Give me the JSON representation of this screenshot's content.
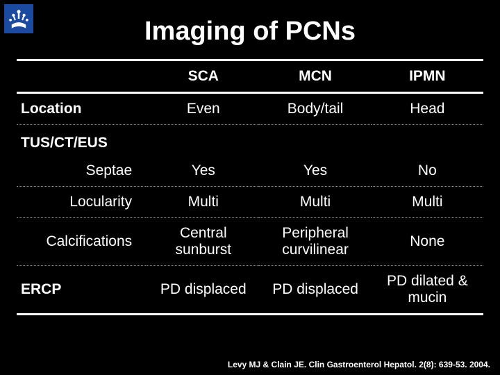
{
  "title": "Imaging of PCNs",
  "columns": [
    "SCA",
    "MCN",
    "IPMN"
  ],
  "rows": [
    {
      "label": "Location",
      "cells": [
        "Even",
        "Body/tail",
        "Head"
      ],
      "type": "row",
      "indent": false,
      "dottedAfter": true
    },
    {
      "label": "TUS/CT/EUS",
      "type": "section"
    },
    {
      "label": "Septae",
      "cells": [
        "Yes",
        "Yes",
        "No"
      ],
      "type": "row",
      "indent": true,
      "dottedAfter": true
    },
    {
      "label": "Locularity",
      "cells": [
        "Multi",
        "Multi",
        "Multi"
      ],
      "type": "row",
      "indent": true,
      "dottedAfter": true
    },
    {
      "label": "Calcifications",
      "cells": [
        "Central sunburst",
        "Peripheral curvilinear",
        "None"
      ],
      "type": "row",
      "indent": true,
      "dottedAfter": true
    },
    {
      "label": "ERCP",
      "cells": [
        "PD displaced",
        "PD displaced",
        "PD dilated & mucin"
      ],
      "type": "row",
      "indent": false,
      "dottedAfter": false
    }
  ],
  "citation": "Levy MJ & Clain JE. Clin Gastroenterol Hepatol. 2(8): 639-53. 2004.",
  "style": {
    "background": "#000000",
    "text": "#ffffff",
    "title_fontsize": 38,
    "cell_fontsize": 21,
    "citation_fontsize": 12,
    "thick_rule_color": "#ffffff",
    "dotted_rule_color": "#888888",
    "logo_bg": "#1a4ba0"
  }
}
